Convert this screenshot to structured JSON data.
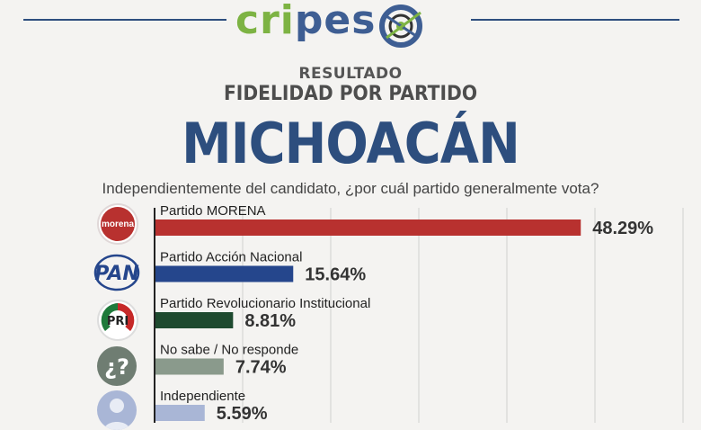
{
  "header": {
    "logo_text_a": "cri",
    "logo_text_b": "pes",
    "sup_title": "RESULTADO",
    "title": "FIDELIDAD POR PARTIDO",
    "state": "MICHOACÁN",
    "question": "Independientemente del candidato, ¿por cuál partido generalmente vota?"
  },
  "icons": {
    "morena": {
      "name": "morena-logo",
      "text": "morena"
    },
    "pan": {
      "name": "pan-logo",
      "text": "PAN"
    },
    "pri": {
      "name": "pri-logo",
      "text": "PRI"
    },
    "nosabe": {
      "name": "question-icon",
      "text": "¿?"
    },
    "independiente": {
      "name": "person-icon"
    }
  },
  "chart_data": {
    "type": "bar",
    "orientation": "horizontal",
    "title": "FIDELIDAD POR PARTIDO",
    "xlim": [
      0,
      60
    ],
    "grid": true,
    "categories": [
      "Partido MORENA",
      "Partido Acción Nacional",
      "Partido Revolucionario Institucional",
      "No sabe / No responde",
      "Independiente"
    ],
    "values": [
      48.29,
      15.64,
      8.81,
      7.74,
      5.59
    ],
    "value_labels": [
      "48.29%",
      "15.64%",
      "8.81%",
      "7.74%",
      "5.59%"
    ],
    "colors": [
      "#b8312f",
      "#25468c",
      "#1e4a2f",
      "#8a9a8c",
      "#a9b6d6"
    ]
  }
}
